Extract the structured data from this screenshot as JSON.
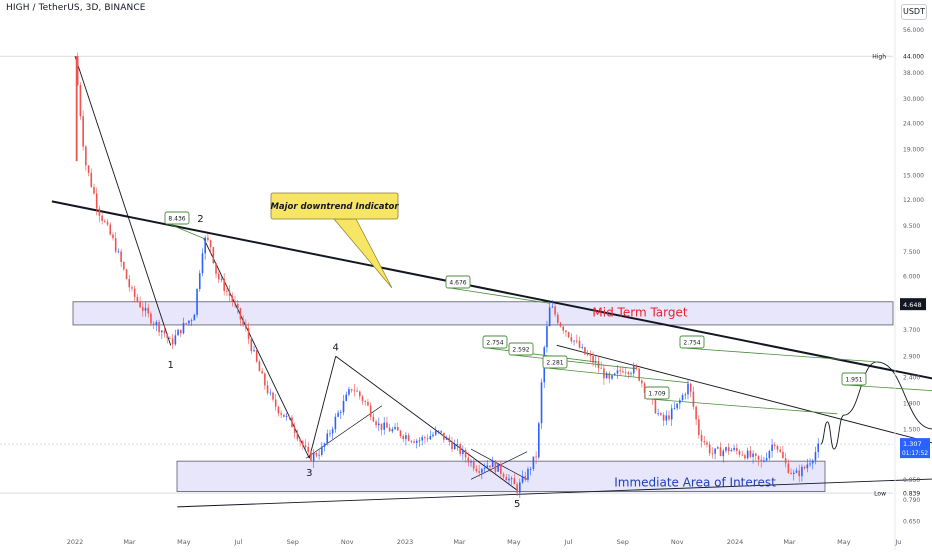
{
  "header": {
    "symbol": "HIGH / TetherUS, 3D, BINANCE",
    "currency": "USDT"
  },
  "colors": {
    "up": "#2962ff",
    "down": "#ef5350",
    "zone_fill": "#e7e6fb",
    "zone_stroke": "#5a5a66",
    "note_bg": "#f7e665",
    "callout_border": "#4a8c3a",
    "price_label_bg": "#131722"
  },
  "chart_data": {
    "type": "candlestick",
    "x_ticks": [
      "2022",
      "Mar",
      "May",
      "Jul",
      "Sep",
      "Nov",
      "2023",
      "Mar",
      "May",
      "Jul",
      "Sep",
      "Nov",
      "2024",
      "Mar",
      "May",
      "Ju"
    ],
    "y_scale": "log",
    "y_ticks": [
      56.0,
      38.0,
      30.0,
      24.0,
      19.0,
      15.0,
      12.0,
      9.5,
      7.5,
      6.0,
      3.7,
      2.9,
      2.4,
      1.9,
      1.5,
      0.95,
      0.79,
      0.65
    ],
    "y_tick_labels": [
      "56.000",
      "38.000",
      "30.000",
      "24.000",
      "19.000",
      "15.000",
      "12.000",
      "9.500",
      "7.500",
      "6.000",
      "3.700",
      "2.900",
      "2.400",
      "1.900",
      "1.500",
      "0.950",
      "0.790",
      "0.650"
    ],
    "y_range": [
      0.6,
      60
    ],
    "price_markers": [
      {
        "label": "High",
        "value_label": "44.000",
        "value": 44.0
      },
      {
        "label": "Low",
        "value_label": "0.839",
        "value": 0.839
      },
      {
        "label": "",
        "value_label": "4.648",
        "value": 4.648
      },
      {
        "label": "",
        "value_label": "1.307",
        "value": 1.307,
        "countdown": "01:17:52"
      }
    ],
    "price_path": [
      [
        2022.0,
        44.0
      ],
      [
        2022.03,
        17.0
      ],
      [
        2022.07,
        11.0
      ],
      [
        2022.12,
        8.0
      ],
      [
        2022.17,
        5.2
      ],
      [
        2022.22,
        4.2
      ],
      [
        2022.27,
        3.6
      ],
      [
        2022.29,
        3.25
      ],
      [
        2022.32,
        3.7
      ],
      [
        2022.36,
        4.2
      ],
      [
        2022.39,
        8.4
      ],
      [
        2022.41,
        8.0
      ],
      [
        2022.43,
        6.0
      ],
      [
        2022.47,
        5.0
      ],
      [
        2022.52,
        3.6
      ],
      [
        2022.56,
        2.5
      ],
      [
        2022.6,
        1.9
      ],
      [
        2022.66,
        1.55
      ],
      [
        2022.71,
        1.15
      ],
      [
        2022.75,
        1.25
      ],
      [
        2022.79,
        1.65
      ],
      [
        2022.84,
        2.2
      ],
      [
        2022.88,
        1.9
      ],
      [
        2022.92,
        1.55
      ],
      [
        2022.98,
        1.45
      ],
      [
        2023.04,
        1.35
      ],
      [
        2023.1,
        1.45
      ],
      [
        2023.16,
        1.25
      ],
      [
        2023.22,
        1.05
      ],
      [
        2023.26,
        1.1
      ],
      [
        2023.3,
        1.0
      ],
      [
        2023.34,
        0.87
      ],
      [
        2023.37,
        1.0
      ],
      [
        2023.4,
        1.2
      ],
      [
        2023.42,
        3.0
      ],
      [
        2023.44,
        4.6
      ],
      [
        2023.47,
        3.9
      ],
      [
        2023.5,
        3.5
      ],
      [
        2023.54,
        3.0
      ],
      [
        2023.58,
        2.7
      ],
      [
        2023.62,
        2.3
      ],
      [
        2023.66,
        2.6
      ],
      [
        2023.7,
        2.55
      ],
      [
        2023.74,
        2.0
      ],
      [
        2023.78,
        1.6
      ],
      [
        2023.82,
        1.8
      ],
      [
        2023.86,
        2.25
      ],
      [
        2023.89,
        1.45
      ],
      [
        2023.93,
        1.2
      ],
      [
        2023.98,
        1.25
      ],
      [
        2024.03,
        1.2
      ],
      [
        2024.08,
        1.1
      ],
      [
        2024.12,
        1.35
      ],
      [
        2024.15,
        1.1
      ],
      [
        2024.18,
        0.98
      ],
      [
        2024.21,
        1.05
      ],
      [
        2024.24,
        1.2
      ],
      [
        2024.26,
        1.307
      ]
    ],
    "projection_path": [
      [
        2024.26,
        1.307
      ],
      [
        2024.28,
        1.6
      ],
      [
        2024.3,
        1.25
      ],
      [
        2024.33,
        1.7
      ],
      [
        2024.43,
        2.754
      ],
      [
        2024.6,
        1.5
      ],
      [
        2024.76,
        1.05
      ],
      [
        2024.85,
        1.0
      ],
      [
        2024.96,
        1.35
      ],
      [
        2025.03,
        1.951
      ],
      [
        2025.08,
        4.648
      ]
    ],
    "wave_labels": [
      {
        "text": "1",
        "x": 2022.29,
        "y": 2.6
      },
      {
        "text": "2",
        "x": 2022.38,
        "y": 9.8
      },
      {
        "text": "3",
        "x": 2022.71,
        "y": 0.98
      },
      {
        "text": "4",
        "x": 2022.79,
        "y": 3.05
      },
      {
        "text": "5",
        "x": 2023.34,
        "y": 0.74
      }
    ],
    "price_callouts": [
      "8.436",
      "4.676",
      "2.754",
      "2.592",
      "2.281",
      "1.709",
      "2.754",
      "1.951"
    ],
    "zones": [
      {
        "label": "Mid Term Target",
        "low": 3.85,
        "high": 4.75
      },
      {
        "label": "Immediate Area of Interest",
        "low": 0.85,
        "high": 1.12
      }
    ],
    "annotations": [
      "Major downtrend Indicator"
    ]
  }
}
